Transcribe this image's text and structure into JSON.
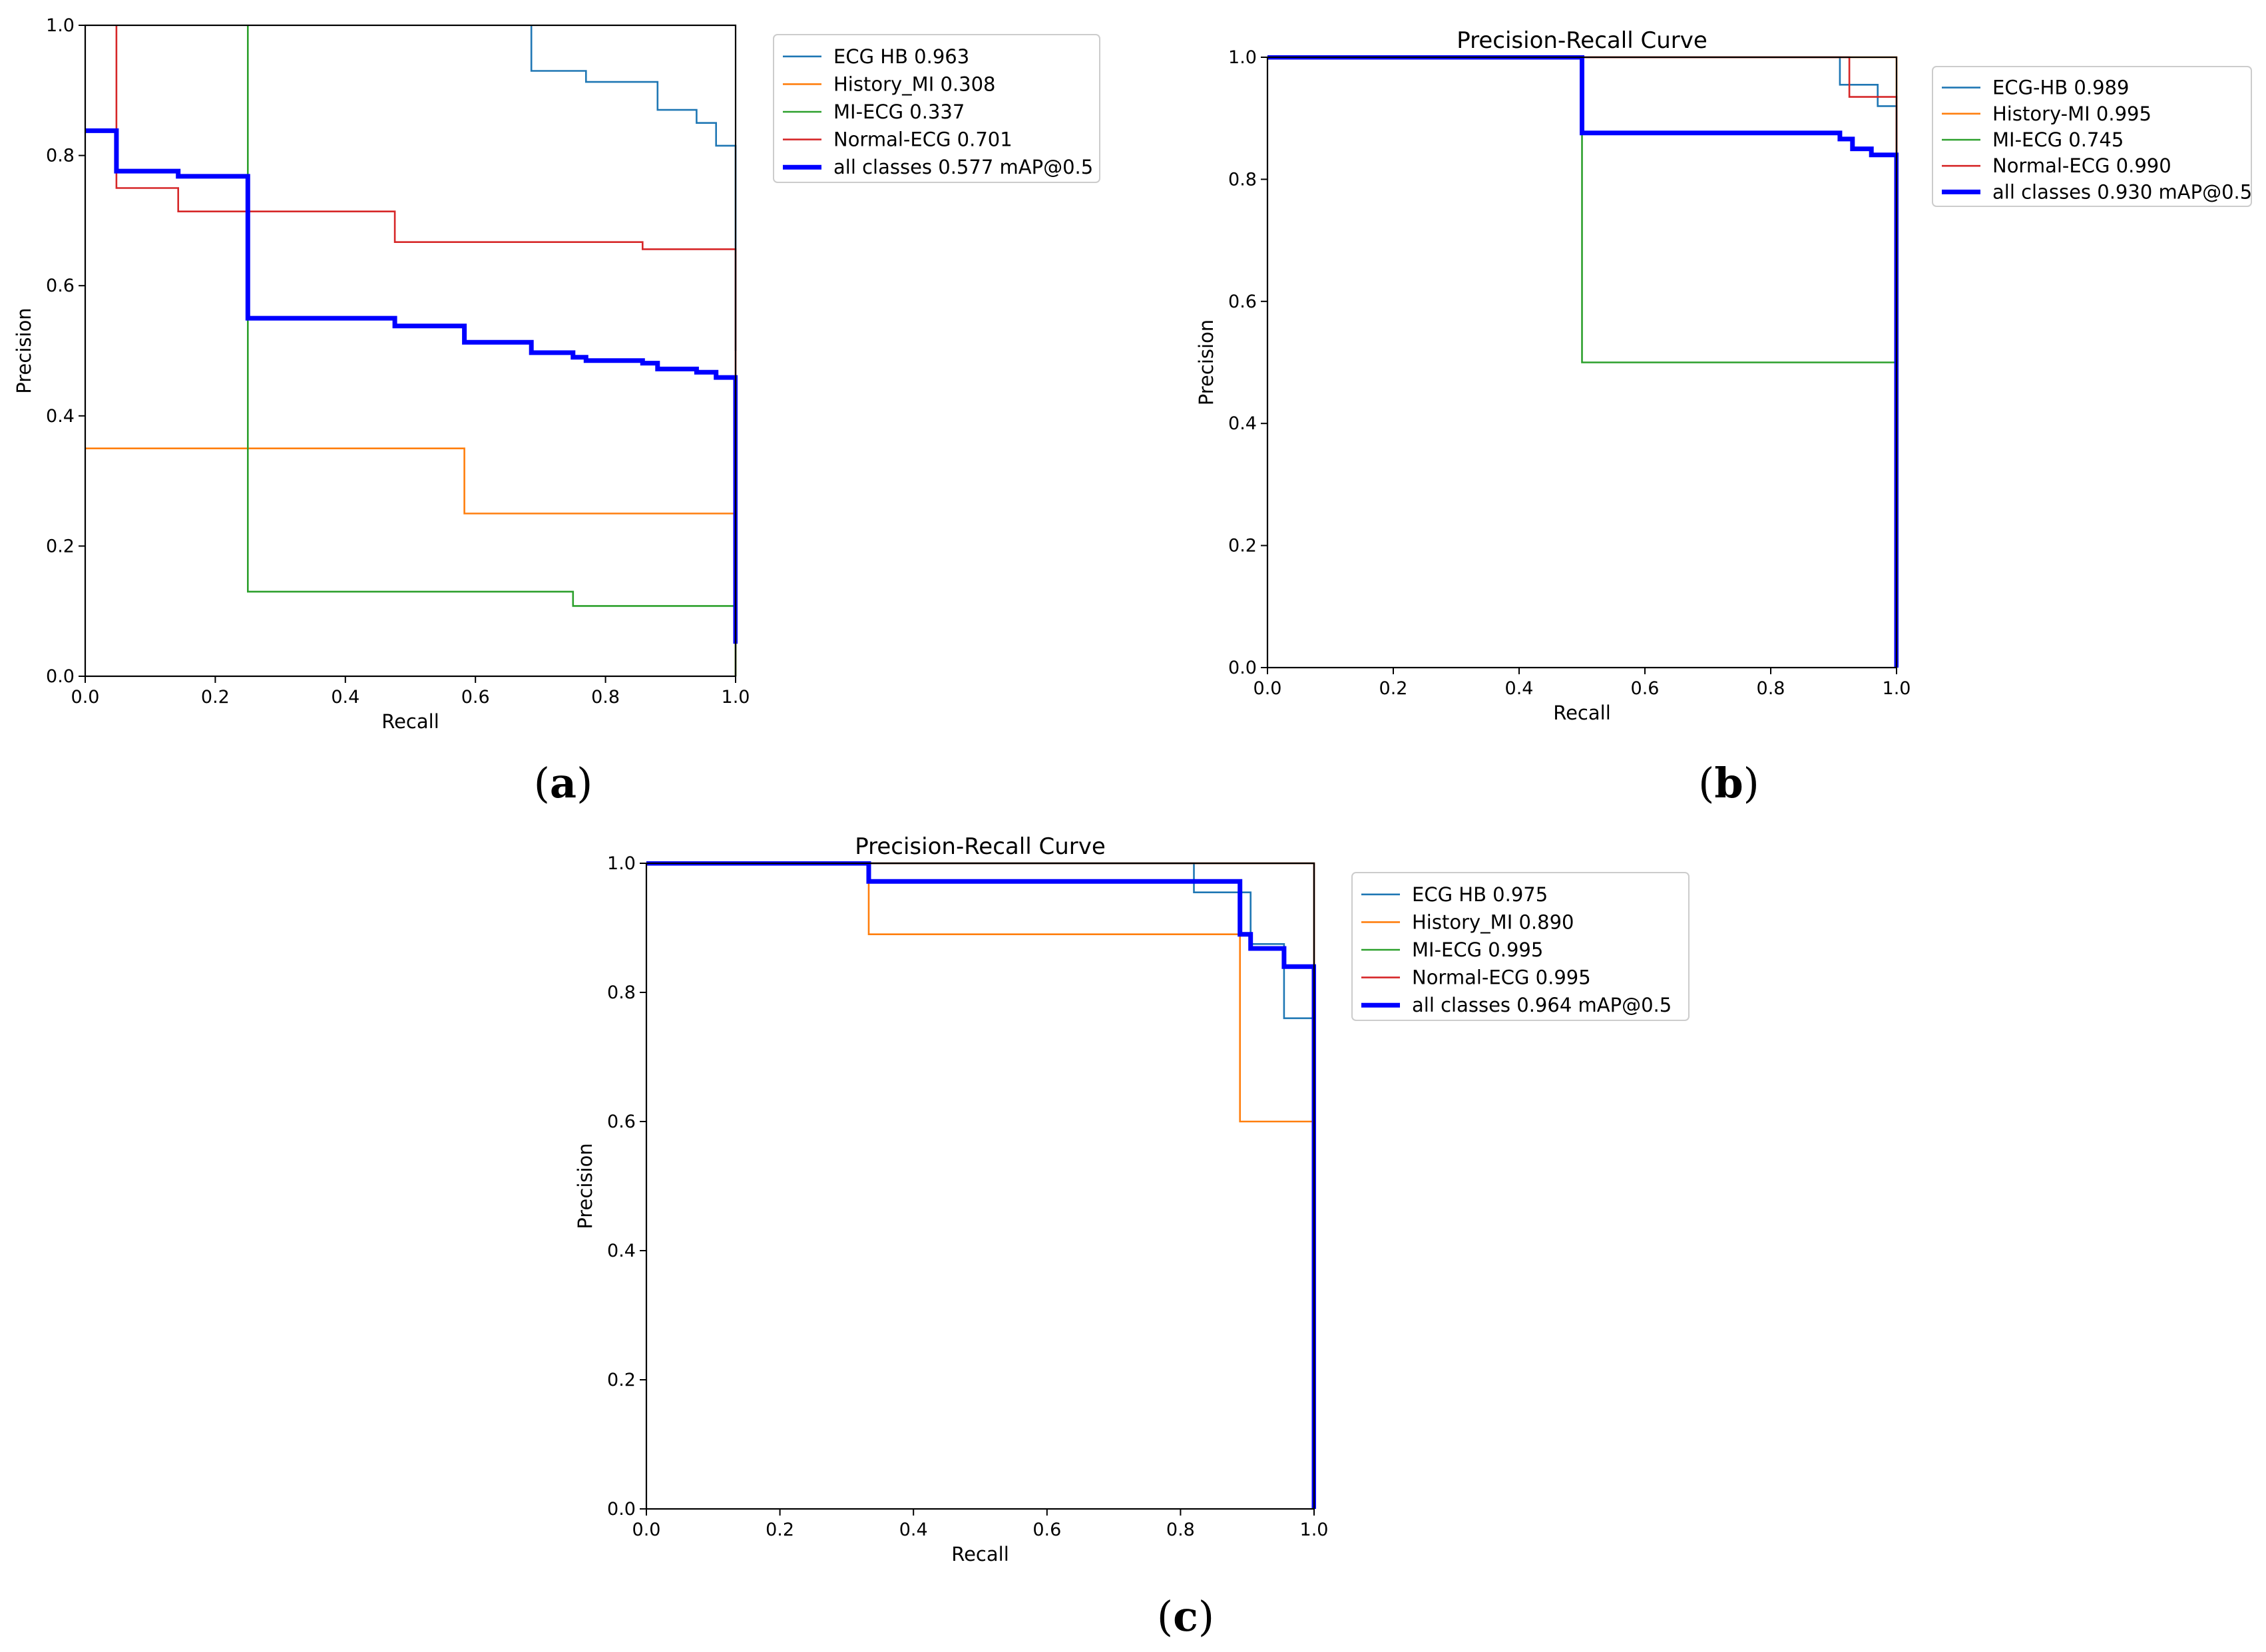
{
  "figure": {
    "panel_labels": [
      {
        "prefix": "(",
        "letter": "a",
        "suffix": ")"
      },
      {
        "prefix": "(",
        "letter": "b",
        "suffix": ")"
      },
      {
        "prefix": "(",
        "letter": "c",
        "suffix": ")"
      }
    ]
  },
  "colors": {
    "ECG HB": "#1f77b4",
    "History_MI": "#ff7f0e",
    "MI-ECG": "#2ca02c",
    "Normal-ECG": "#d62728",
    "all classes": "#0000ff"
  },
  "chart_data": [
    {
      "type": "line",
      "panel": "a",
      "title": "",
      "xlabel": "Recall",
      "ylabel": "Precision",
      "xlim": [
        0,
        1
      ],
      "ylim": [
        0,
        1
      ],
      "xticks": [
        "0.0",
        "0.2",
        "0.4",
        "0.6",
        "0.8",
        "1.0"
      ],
      "yticks": [
        "0.0",
        "0.2",
        "0.4",
        "0.6",
        "0.8",
        "1.0"
      ],
      "legend_position": "outside-right-top",
      "series": [
        {
          "name": "ECG HB",
          "label": "ECG HB 0.963",
          "color_key": "ECG HB",
          "bold": false,
          "points": [
            [
              0.686,
              1.0
            ],
            [
              0.686,
              0.93
            ],
            [
              0.77,
              0.93
            ],
            [
              0.77,
              0.913
            ],
            [
              0.88,
              0.913
            ],
            [
              0.88,
              0.87
            ],
            [
              0.94,
              0.87
            ],
            [
              0.94,
              0.85
            ],
            [
              0.97,
              0.85
            ],
            [
              0.97,
              0.815
            ],
            [
              1.0,
              0.815
            ],
            [
              1.0,
              0.5
            ]
          ]
        },
        {
          "name": "History_MI",
          "label": "History_MI 0.308",
          "color_key": "History_MI",
          "bold": false,
          "points": [
            [
              0.0,
              0.35
            ],
            [
              0.583,
              0.35
            ],
            [
              0.583,
              0.25
            ],
            [
              1.0,
              0.25
            ],
            [
              1.0,
              0.0
            ]
          ]
        },
        {
          "name": "MI-ECG",
          "label": "MI-ECG 0.337",
          "color_key": "MI-ECG",
          "bold": false,
          "points": [
            [
              0.25,
              1.0
            ],
            [
              0.25,
              0.13
            ],
            [
              0.75,
              0.13
            ],
            [
              0.75,
              0.108
            ],
            [
              1.0,
              0.108
            ],
            [
              1.0,
              0.0
            ]
          ]
        },
        {
          "name": "Normal-ECG",
          "label": "Normal-ECG 0.701",
          "color_key": "Normal-ECG",
          "bold": false,
          "points": [
            [
              0.048,
              1.0
            ],
            [
              0.048,
              0.75
            ],
            [
              0.143,
              0.75
            ],
            [
              0.143,
              0.714
            ],
            [
              0.476,
              0.714
            ],
            [
              0.476,
              0.667
            ],
            [
              0.857,
              0.667
            ],
            [
              0.857,
              0.656
            ],
            [
              1.0,
              0.656
            ],
            [
              1.0,
              0.4
            ]
          ]
        },
        {
          "name": "all classes",
          "label": "all classes 0.577 mAP@0.5",
          "color_key": "all classes",
          "bold": true,
          "points": [
            [
              0.0,
              0.838
            ],
            [
              0.048,
              0.838
            ],
            [
              0.048,
              0.776
            ],
            [
              0.143,
              0.776
            ],
            [
              0.143,
              0.768
            ],
            [
              0.25,
              0.768
            ],
            [
              0.25,
              0.55
            ],
            [
              0.476,
              0.55
            ],
            [
              0.476,
              0.538
            ],
            [
              0.583,
              0.538
            ],
            [
              0.583,
              0.513
            ],
            [
              0.686,
              0.513
            ],
            [
              0.686,
              0.497
            ],
            [
              0.75,
              0.497
            ],
            [
              0.75,
              0.49
            ],
            [
              0.77,
              0.49
            ],
            [
              0.77,
              0.485
            ],
            [
              0.857,
              0.485
            ],
            [
              0.857,
              0.481
            ],
            [
              0.88,
              0.481
            ],
            [
              0.88,
              0.472
            ],
            [
              0.94,
              0.472
            ],
            [
              0.94,
              0.467
            ],
            [
              0.97,
              0.467
            ],
            [
              0.97,
              0.459
            ],
            [
              1.0,
              0.459
            ],
            [
              1.0,
              0.05
            ]
          ]
        }
      ]
    },
    {
      "type": "line",
      "panel": "b",
      "title": "Precision-Recall Curve",
      "xlabel": "Recall",
      "ylabel": "Precision",
      "xlim": [
        0,
        1
      ],
      "ylim": [
        0,
        1
      ],
      "xticks": [
        "0.0",
        "0.2",
        "0.4",
        "0.6",
        "0.8",
        "1.0"
      ],
      "yticks": [
        "0.0",
        "0.2",
        "0.4",
        "0.6",
        "0.8",
        "1.0"
      ],
      "legend_position": "outside-right-top",
      "series": [
        {
          "name": "ECG-HB",
          "label": "ECG-HB 0.989",
          "color_key": "ECG HB",
          "bold": false,
          "points": [
            [
              0.0,
              1.0
            ],
            [
              0.91,
              1.0
            ],
            [
              0.91,
              0.955
            ],
            [
              0.97,
              0.955
            ],
            [
              0.97,
              0.92
            ],
            [
              1.0,
              0.92
            ],
            [
              1.0,
              0.0
            ]
          ]
        },
        {
          "name": "History-MI",
          "label": "History-MI 0.995",
          "color_key": "History_MI",
          "bold": false,
          "points": [
            [
              0.0,
              1.0
            ],
            [
              1.0,
              1.0
            ],
            [
              1.0,
              0.0
            ]
          ]
        },
        {
          "name": "MI-ECG",
          "label": "MI-ECG 0.745",
          "color_key": "MI-ECG",
          "bold": false,
          "points": [
            [
              0.0,
              1.0
            ],
            [
              0.5,
              1.0
            ],
            [
              0.5,
              0.5
            ],
            [
              1.0,
              0.5
            ],
            [
              1.0,
              0.0
            ]
          ]
        },
        {
          "name": "Normal-ECG",
          "label": "Normal-ECG 0.990",
          "color_key": "Normal-ECG",
          "bold": false,
          "points": [
            [
              0.0,
              1.0
            ],
            [
              0.925,
              1.0
            ],
            [
              0.925,
              0.935
            ],
            [
              1.0,
              0.935
            ],
            [
              1.0,
              0.0
            ]
          ]
        },
        {
          "name": "all classes",
          "label": "all classes 0.930 mAP@0.5",
          "color_key": "all classes",
          "bold": true,
          "points": [
            [
              0.0,
              1.0
            ],
            [
              0.5,
              1.0
            ],
            [
              0.5,
              0.876
            ],
            [
              0.91,
              0.876
            ],
            [
              0.91,
              0.866
            ],
            [
              0.93,
              0.866
            ],
            [
              0.93,
              0.85
            ],
            [
              0.96,
              0.85
            ],
            [
              0.96,
              0.84
            ],
            [
              1.0,
              0.84
            ],
            [
              1.0,
              0.0
            ]
          ]
        }
      ]
    },
    {
      "type": "line",
      "panel": "c",
      "title": "Precision-Recall Curve",
      "xlabel": "Recall",
      "ylabel": "Precision",
      "xlim": [
        0,
        1
      ],
      "ylim": [
        0,
        1
      ],
      "xticks": [
        "0.0",
        "0.2",
        "0.4",
        "0.6",
        "0.8",
        "1.0"
      ],
      "yticks": [
        "0.0",
        "0.2",
        "0.4",
        "0.6",
        "0.8",
        "1.0"
      ],
      "legend_position": "outside-right-top",
      "series": [
        {
          "name": "ECG HB",
          "label": "ECG HB 0.975",
          "color_key": "ECG HB",
          "bold": false,
          "points": [
            [
              0.0,
              1.0
            ],
            [
              0.82,
              1.0
            ],
            [
              0.82,
              0.955
            ],
            [
              0.905,
              0.955
            ],
            [
              0.905,
              0.875
            ],
            [
              0.955,
              0.875
            ],
            [
              0.955,
              0.76
            ],
            [
              1.0,
              0.76
            ],
            [
              1.0,
              0.0
            ]
          ]
        },
        {
          "name": "History_MI",
          "label": "History_MI 0.890",
          "color_key": "History_MI",
          "bold": false,
          "points": [
            [
              0.0,
              1.0
            ],
            [
              0.333,
              1.0
            ],
            [
              0.333,
              0.89
            ],
            [
              0.889,
              0.89
            ],
            [
              0.889,
              0.6
            ],
            [
              1.0,
              0.6
            ],
            [
              1.0,
              0.0
            ]
          ]
        },
        {
          "name": "MI-ECG",
          "label": "MI-ECG 0.995",
          "color_key": "MI-ECG",
          "bold": false,
          "points": [
            [
              0.0,
              1.0
            ],
            [
              1.0,
              1.0
            ],
            [
              1.0,
              0.0
            ]
          ]
        },
        {
          "name": "Normal-ECG",
          "label": "Normal-ECG 0.995",
          "color_key": "Normal-ECG",
          "bold": false,
          "points": [
            [
              0.0,
              1.0
            ],
            [
              1.0,
              1.0
            ],
            [
              1.0,
              0.0
            ]
          ]
        },
        {
          "name": "all classes",
          "label": "all classes 0.964 mAP@0.5",
          "color_key": "all classes",
          "bold": true,
          "points": [
            [
              0.0,
              1.0
            ],
            [
              0.333,
              1.0
            ],
            [
              0.333,
              0.972
            ],
            [
              0.889,
              0.972
            ],
            [
              0.889,
              0.962
            ],
            [
              0.889,
              0.962
            ],
            [
              0.889,
              0.89
            ],
            [
              0.905,
              0.89
            ],
            [
              0.905,
              0.868
            ],
            [
              0.955,
              0.868
            ],
            [
              0.955,
              0.84
            ],
            [
              1.0,
              0.84
            ],
            [
              1.0,
              0.0
            ]
          ]
        }
      ]
    }
  ]
}
